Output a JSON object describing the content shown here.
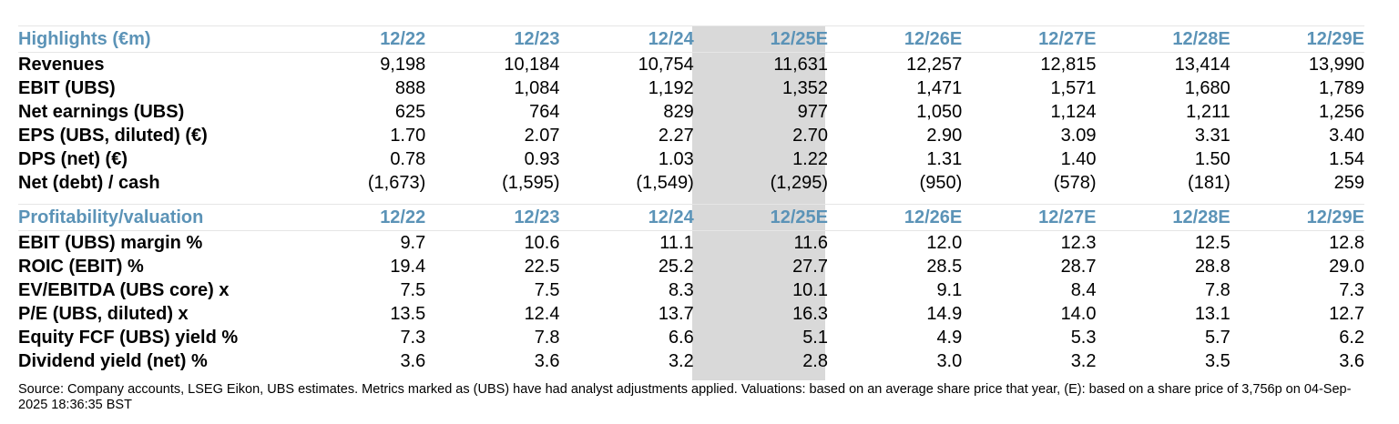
{
  "highlights": {
    "title": "Highlights (€m)",
    "columns": [
      "12/22",
      "12/23",
      "12/24",
      "12/25E",
      "12/26E",
      "12/27E",
      "12/28E",
      "12/29E"
    ],
    "rows": [
      {
        "label": "Revenues",
        "values": [
          "9,198",
          "10,184",
          "10,754",
          "11,631",
          "12,257",
          "12,815",
          "13,414",
          "13,990"
        ]
      },
      {
        "label": "EBIT (UBS)",
        "values": [
          "888",
          "1,084",
          "1,192",
          "1,352",
          "1,471",
          "1,571",
          "1,680",
          "1,789"
        ]
      },
      {
        "label": "Net earnings (UBS)",
        "values": [
          "625",
          "764",
          "829",
          "977",
          "1,050",
          "1,124",
          "1,211",
          "1,256"
        ]
      },
      {
        "label": "EPS (UBS, diluted) (€)",
        "values": [
          "1.70",
          "2.07",
          "2.27",
          "2.70",
          "2.90",
          "3.09",
          "3.31",
          "3.40"
        ]
      },
      {
        "label": "DPS (net) (€)",
        "values": [
          "0.78",
          "0.93",
          "1.03",
          "1.22",
          "1.31",
          "1.40",
          "1.50",
          "1.54"
        ]
      },
      {
        "label": "Net (debt) / cash",
        "values": [
          "(1,673)",
          "(1,595)",
          "(1,549)",
          "(1,295)",
          "(950)",
          "(578)",
          "(181)",
          "259"
        ]
      }
    ]
  },
  "profitability": {
    "title": "Profitability/valuation",
    "columns": [
      "12/22",
      "12/23",
      "12/24",
      "12/25E",
      "12/26E",
      "12/27E",
      "12/28E",
      "12/29E"
    ],
    "rows": [
      {
        "label": "EBIT (UBS) margin %",
        "values": [
          "9.7",
          "10.6",
          "11.1",
          "11.6",
          "12.0",
          "12.3",
          "12.5",
          "12.8"
        ]
      },
      {
        "label": "ROIC (EBIT) %",
        "values": [
          "19.4",
          "22.5",
          "25.2",
          "27.7",
          "28.5",
          "28.7",
          "28.8",
          "29.0"
        ]
      },
      {
        "label": "EV/EBITDA (UBS core) x",
        "values": [
          "7.5",
          "7.5",
          "8.3",
          "10.1",
          "9.1",
          "8.4",
          "7.8",
          "7.3"
        ]
      },
      {
        "label": "P/E (UBS, diluted) x",
        "values": [
          "13.5",
          "12.4",
          "13.7",
          "16.3",
          "14.9",
          "14.0",
          "13.1",
          "12.7"
        ]
      },
      {
        "label": "Equity FCF (UBS) yield %",
        "values": [
          "7.3",
          "7.8",
          "6.6",
          "5.1",
          "4.9",
          "5.3",
          "5.7",
          "6.2"
        ]
      },
      {
        "label": "Dividend yield (net) %",
        "values": [
          "3.6",
          "3.6",
          "3.2",
          "2.8",
          "3.0",
          "3.2",
          "3.5",
          "3.6"
        ]
      }
    ]
  },
  "footnote": "Source: Company accounts, LSEG Eikon, UBS estimates. Metrics marked as (UBS) have had analyst adjustments applied. Valuations: based on an average share price that year, (E): based on a share price of 3,756p on 04-Sep-2025 18:36:35 BST",
  "colors": {
    "header_text": "#5b93b7",
    "highlight_column": "#d9d9d9"
  }
}
